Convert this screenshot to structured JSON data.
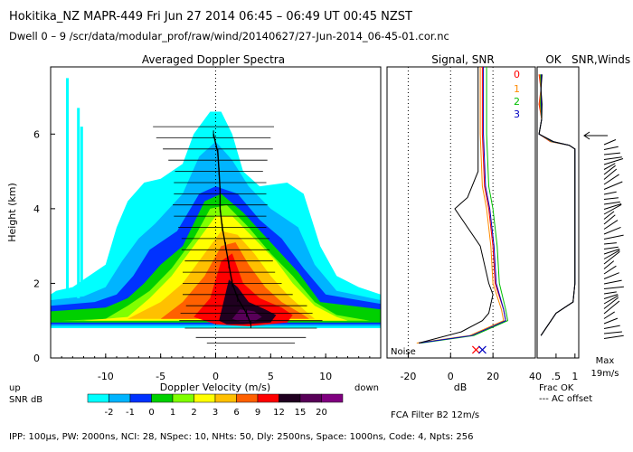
{
  "header": {
    "line1": "Hokitika_NZ   MAPR-449   Fri Jun 27 2014 06:45 – 06:49 UT 00:45 NZST",
    "line2": "Dwell   0 –   9    /scr/data/modular_prof/raw/wind/20140627/27-Jun-2014_06-45-01.cor.nc"
  },
  "footer": {
    "params": "IPP: 100µs,  PW: 2000ns,  NCI:  28,  NSpec: 10, NHts: 50,  Dly: 2500ns,  Space: 1000ns,  Code: 4,  Npts: 256",
    "filter": "FCA Filter B2 12m/s"
  },
  "colorbar": {
    "label": "SNR dB",
    "up": "up",
    "down": "down",
    "levels": [
      "-2",
      "-1",
      "0",
      "1",
      "2",
      "3",
      "6",
      "9",
      "12",
      "15",
      "20"
    ],
    "colors": [
      "#00ffff",
      "#00b4ff",
      "#0032ff",
      "#00d000",
      "#80ff00",
      "#ffff00",
      "#ffc000",
      "#ff6000",
      "#ff0000",
      "#200020",
      "#580058",
      "#800080"
    ]
  },
  "panels": {
    "spectra": {
      "title": "Averaged Doppler Spectra",
      "xlabel": "Doppler Velocity (m/s)",
      "ylabel": "Height (km)"
    },
    "signal": {
      "title": "Signal, SNR",
      "xlabel": "dB",
      "noise_label": "Noise"
    },
    "ok": {
      "title": "OK",
      "xlabel": "Frac OK",
      "legend_note": "--- AC offset"
    },
    "winds": {
      "title": "SNR,Winds",
      "max_label": "Max",
      "max_value": "19m/s"
    }
  },
  "chart_data": [
    {
      "type": "heatmap",
      "title": "Averaged Doppler Spectra",
      "xlabel": "Doppler Velocity (m/s)",
      "ylabel": "Height (km)",
      "xlim": [
        -15,
        15
      ],
      "ylim": [
        0,
        7.8
      ],
      "xticks": [
        -10,
        -5,
        0,
        5,
        10
      ],
      "yticks": [
        0,
        2,
        4,
        6
      ],
      "peak_velocity_by_height": [
        {
          "h": 0.9,
          "v": 3.2
        },
        {
          "h": 1.2,
          "v": 2.8
        },
        {
          "h": 1.6,
          "v": 2.0
        },
        {
          "h": 2.0,
          "v": 1.5
        },
        {
          "h": 2.5,
          "v": 1.2
        },
        {
          "h": 3.0,
          "v": 0.9
        },
        {
          "h": 3.5,
          "v": 0.6
        },
        {
          "h": 4.0,
          "v": 0.4
        },
        {
          "h": 4.5,
          "v": 0.4
        },
        {
          "h": 5.0,
          "v": 0.3
        },
        {
          "h": 5.5,
          "v": 0.2
        },
        {
          "h": 6.0,
          "v": -0.2
        }
      ]
    },
    {
      "type": "line",
      "title": "Signal, SNR",
      "xlabel": "dB",
      "xlim": [
        -30,
        40
      ],
      "xticks": [
        -20,
        0,
        20,
        40
      ],
      "ylim": [
        0,
        7.8
      ],
      "series": [
        {
          "name": "0",
          "color": "#ff0000",
          "points": [
            [
              15,
              7.8
            ],
            [
              15,
              6
            ],
            [
              16,
              4.6
            ],
            [
              18,
              4
            ],
            [
              20,
              3
            ],
            [
              21,
              2
            ],
            [
              25,
              1.3
            ],
            [
              26,
              1.0
            ],
            [
              10,
              0.6
            ],
            [
              -15,
              0.4
            ]
          ]
        },
        {
          "name": "1",
          "color": "#ff8c00",
          "points": [
            [
              14,
              7.8
            ],
            [
              14,
              6
            ],
            [
              15,
              4.6
            ],
            [
              17,
              4
            ],
            [
              19,
              3
            ],
            [
              20,
              2
            ],
            [
              24,
              1.3
            ],
            [
              25,
              1.0
            ],
            [
              9,
              0.6
            ],
            [
              -16,
              0.4
            ]
          ]
        },
        {
          "name": "2",
          "color": "#00c000",
          "points": [
            [
              17,
              7.8
            ],
            [
              17,
              6
            ],
            [
              18,
              4.6
            ],
            [
              20,
              4
            ],
            [
              22,
              3
            ],
            [
              23,
              2
            ],
            [
              26,
              1.3
            ],
            [
              27,
              1.0
            ],
            [
              11,
              0.6
            ],
            [
              -14,
              0.4
            ]
          ]
        },
        {
          "name": "3",
          "color": "#0000c0",
          "points": [
            [
              15.5,
              7.8
            ],
            [
              15.5,
              6
            ],
            [
              16.5,
              4.6
            ],
            [
              18.5,
              4
            ],
            [
              20.5,
              3
            ],
            [
              21.5,
              2
            ],
            [
              25,
              1.3
            ],
            [
              26,
              1.0
            ],
            [
              10,
              0.6
            ],
            [
              -15,
              0.4
            ]
          ]
        },
        {
          "name": "",
          "color": "#000000",
          "points": [
            [
              13,
              7.8
            ],
            [
              13,
              6
            ],
            [
              13,
              5
            ],
            [
              8,
              4.3
            ],
            [
              2,
              4
            ],
            [
              14,
              3
            ],
            [
              18,
              2
            ],
            [
              20,
              1.7
            ],
            [
              18,
              1.2
            ],
            [
              15,
              1.0
            ],
            [
              5,
              0.7
            ],
            [
              -15,
              0.4
            ]
          ]
        }
      ]
    },
    {
      "type": "line",
      "title": "OK",
      "xlabel": "Frac OK",
      "xlim": [
        0,
        1.1
      ],
      "xticks": [
        0.5,
        1
      ],
      "xtick_labels": [
        ".5",
        "1"
      ],
      "ylim": [
        0,
        7.8
      ]
    },
    {
      "type": "scatter",
      "title": "SNR,Winds",
      "max_wind": "19m/s"
    }
  ]
}
